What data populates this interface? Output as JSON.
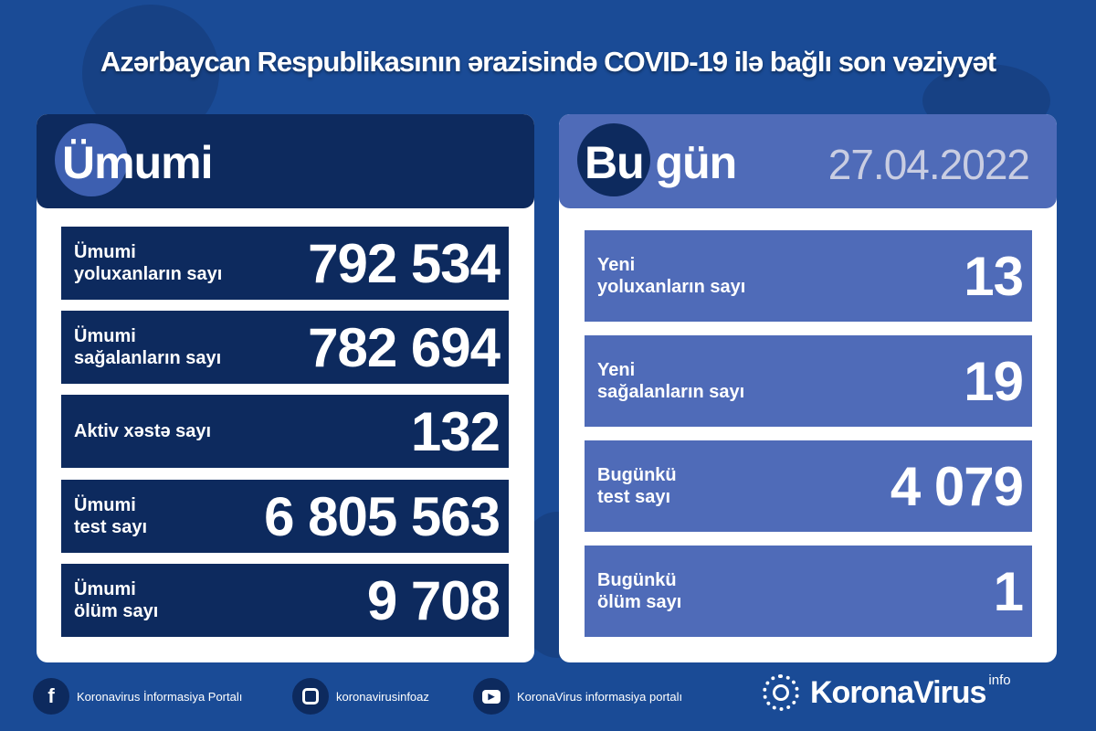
{
  "title": "Azərbaycan Respublikasının ərazisində COVID-19 ilə bağlı son vəziyyət",
  "colors": {
    "background": "#1a4b96",
    "navy": "#0d2a5e",
    "periwinkle": "#4f6bb8",
    "date": "#c9cde2"
  },
  "total": {
    "heading": "Ümumi",
    "rows": [
      {
        "label": "Ümumi\nyoluxanların sayı",
        "value": "792 534"
      },
      {
        "label": "Ümumi\nsağalanların sayı",
        "value": "782 694"
      },
      {
        "label": "Aktiv xəstə sayı",
        "value": "132"
      },
      {
        "label": "Ümumi\ntest sayı",
        "value": "6 805 563"
      },
      {
        "label": "Ümumi\nölüm sayı",
        "value": "9 708"
      }
    ]
  },
  "today": {
    "heading": "Bu gün",
    "date": "27.04.2022",
    "rows": [
      {
        "label": "Yeni\nyoluxanların sayı",
        "value": "13"
      },
      {
        "label": "Yeni\nsağalanların sayı",
        "value": "19"
      },
      {
        "label": "Bugünkü\ntest sayı",
        "value": "4 079"
      },
      {
        "label": "Bugünkü\nölüm sayı",
        "value": "1"
      }
    ]
  },
  "footer": [
    {
      "icon": "facebook-icon",
      "text": "Koronavirus İnformasiya Portalı"
    },
    {
      "icon": "instagram-icon",
      "text": "koronavirusinfoaz"
    },
    {
      "icon": "youtube-icon",
      "text": "KoronaVirus informasiya portalı"
    }
  ],
  "logo": {
    "name": "KoronaVirus",
    "suffix": "info"
  }
}
